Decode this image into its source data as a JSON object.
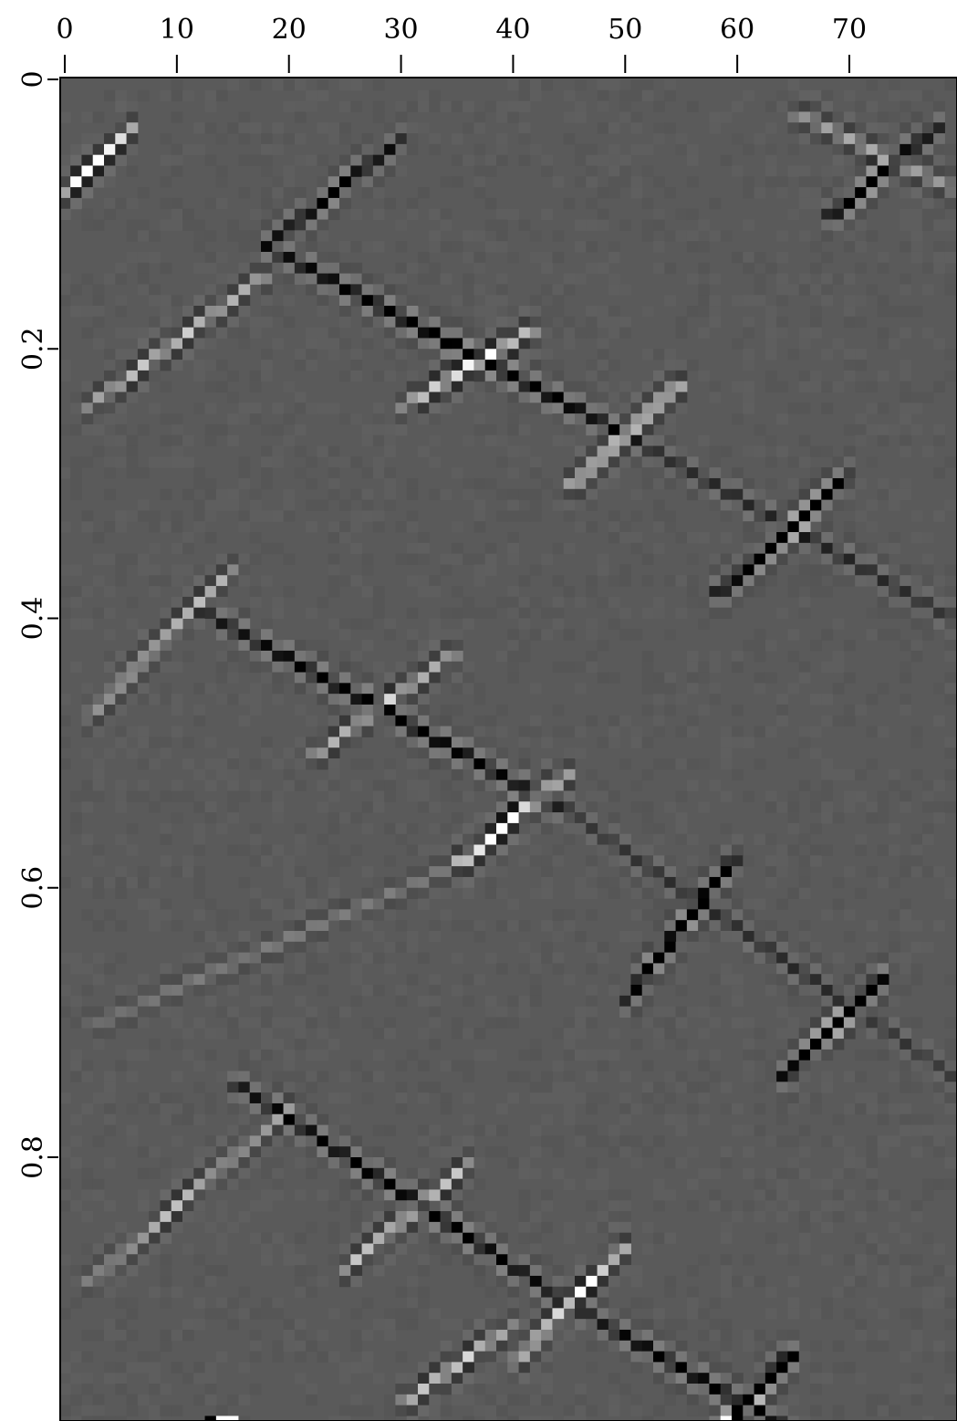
{
  "chart_data": {
    "type": "heatmap",
    "title": "",
    "xlabel": "",
    "ylabel": "",
    "x_axis_position": "top",
    "y_axis_direction": "downward",
    "xlim": [
      -0.5,
      79.5
    ],
    "ylim": [
      0,
      1
    ],
    "x_ticks": [
      0,
      10,
      20,
      30,
      40,
      50,
      60,
      70
    ],
    "x_tick_labels": [
      "0",
      "10",
      "20",
      "30",
      "40",
      "50",
      "60",
      "70"
    ],
    "y_ticks": [
      0,
      0.2,
      0.4,
      0.6,
      0.8
    ],
    "y_tick_labels": [
      "0",
      "0.2",
      "0.4",
      "0.6",
      "0.8"
    ],
    "colormap": "grayscale",
    "background_gray": "#5a5a5a",
    "n_traces": 80,
    "n_samples": 125,
    "events": [
      {
        "x0": 18,
        "t0": 0.12,
        "x1": 50,
        "t1": 0.26,
        "polarity": -1,
        "strength": 0.9
      },
      {
        "x0": 50,
        "t0": 0.26,
        "x1": 80,
        "t1": 0.4,
        "polarity": -1,
        "strength": 0.45
      },
      {
        "x0": 18,
        "t0": 0.14,
        "x1": 2,
        "t1": 0.24,
        "polarity": 1,
        "strength": 0.5
      },
      {
        "x0": 30,
        "t0": 0.04,
        "x1": 18,
        "t1": 0.12,
        "polarity": -1,
        "strength": 0.4
      },
      {
        "x0": 42,
        "t0": 0.18,
        "x1": 30,
        "t1": 0.24,
        "polarity": 1,
        "strength": 0.45
      },
      {
        "x0": 55,
        "t0": 0.22,
        "x1": 45,
        "t1": 0.3,
        "polarity": 1,
        "strength": 0.6
      },
      {
        "x0": 70,
        "t0": 0.29,
        "x1": 58,
        "t1": 0.38,
        "polarity": -1,
        "strength": 0.6
      },
      {
        "x0": 78,
        "t0": 0.03,
        "x1": 68,
        "t1": 0.1,
        "polarity": -1,
        "strength": 0.45
      },
      {
        "x0": 65,
        "t0": 0.02,
        "x1": 80,
        "t1": 0.08,
        "polarity": 1,
        "strength": 0.35
      },
      {
        "x0": 6,
        "t0": 0.03,
        "x1": 0,
        "t1": 0.08,
        "polarity": 1,
        "strength": 0.35
      },
      {
        "x0": 12,
        "t0": 0.39,
        "x1": 45,
        "t1": 0.54,
        "polarity": -1,
        "strength": 0.9
      },
      {
        "x0": 45,
        "t0": 0.54,
        "x1": 80,
        "t1": 0.74,
        "polarity": -1,
        "strength": 0.5
      },
      {
        "x0": 15,
        "t0": 0.36,
        "x1": 2,
        "t1": 0.47,
        "polarity": 1,
        "strength": 0.5
      },
      {
        "x0": 35,
        "t0": 0.42,
        "x1": 22,
        "t1": 0.5,
        "polarity": 1,
        "strength": 0.4
      },
      {
        "x0": 45,
        "t0": 0.51,
        "x1": 35,
        "t1": 0.58,
        "polarity": 1,
        "strength": 0.55
      },
      {
        "x0": 60,
        "t0": 0.57,
        "x1": 50,
        "t1": 0.68,
        "polarity": -1,
        "strength": 0.7
      },
      {
        "x0": 73,
        "t0": 0.66,
        "x1": 64,
        "t1": 0.74,
        "polarity": -1,
        "strength": 0.6
      },
      {
        "x0": 40,
        "t0": 0.56,
        "x1": 2,
        "t1": 0.7,
        "polarity": 1,
        "strength": 0.35
      },
      {
        "x0": 15,
        "t0": 0.74,
        "x1": 46,
        "t1": 0.91,
        "polarity": -1,
        "strength": 0.9
      },
      {
        "x0": 46,
        "t0": 0.91,
        "x1": 65,
        "t1": 1.0,
        "polarity": -1,
        "strength": 0.5
      },
      {
        "x0": 20,
        "t0": 0.76,
        "x1": 2,
        "t1": 0.89,
        "polarity": 1,
        "strength": 0.5
      },
      {
        "x0": 36,
        "t0": 0.8,
        "x1": 25,
        "t1": 0.88,
        "polarity": 1,
        "strength": 0.45
      },
      {
        "x0": 50,
        "t0": 0.86,
        "x1": 40,
        "t1": 0.95,
        "polarity": 1,
        "strength": 0.6
      },
      {
        "x0": 65,
        "t0": 0.94,
        "x1": 58,
        "t1": 1.0,
        "polarity": -1,
        "strength": 0.55
      },
      {
        "x0": 40,
        "t0": 0.92,
        "x1": 30,
        "t1": 0.98,
        "polarity": 1,
        "strength": 0.35
      }
    ],
    "bottom_spikes": [
      {
        "x": 13,
        "t": 0.99,
        "polarity": -1
      },
      {
        "x": 14,
        "t": 0.99,
        "polarity": 1
      },
      {
        "x": 15,
        "t": 0.99,
        "polarity": 1
      },
      {
        "x": 59,
        "t": 0.99,
        "polarity": 1
      },
      {
        "x": 60,
        "t": 0.99,
        "polarity": -1
      }
    ]
  }
}
